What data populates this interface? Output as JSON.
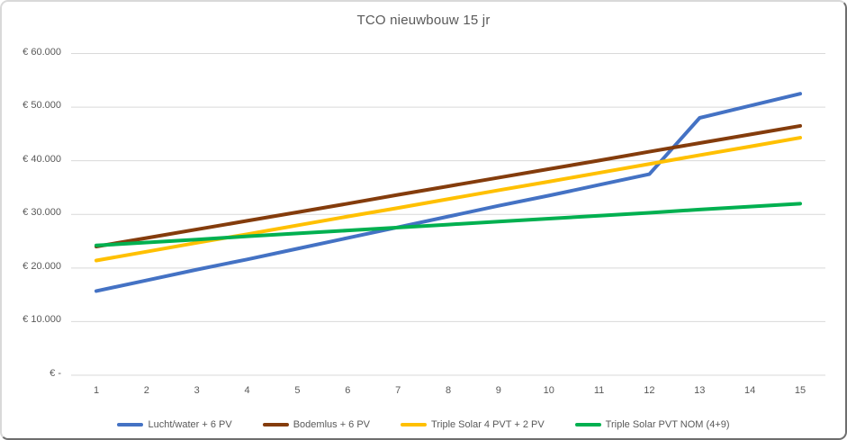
{
  "frame": {
    "background": "#FFFFFF",
    "border_light_color": "#D9D9D9",
    "border_dark_color": "#6E6E6E"
  },
  "chart_data": {
    "type": "line",
    "title": "TCO nieuwbouw 15 jr",
    "xlabel": "",
    "ylabel": "",
    "x": [
      1,
      2,
      3,
      4,
      5,
      6,
      7,
      8,
      9,
      10,
      11,
      12,
      13,
      14,
      15
    ],
    "x_tick_labels": [
      "1",
      "2",
      "3",
      "4",
      "5",
      "6",
      "7",
      "8",
      "9",
      "10",
      "11",
      "12",
      "13",
      "14",
      "15"
    ],
    "y_axis": {
      "min": 0,
      "max": 60000,
      "step": 10000,
      "tick_values": [
        0,
        10000,
        20000,
        30000,
        40000,
        50000,
        60000
      ],
      "tick_labels": [
        "€ -",
        "€ 10.000",
        "€ 20.000",
        "€ 30.000",
        "€ 40.000",
        "€ 50.000",
        "€ 60.000"
      ]
    },
    "grid": "horizontal",
    "gridline_color": "#D9D9D9",
    "text_color": "#595959",
    "legend_position": "bottom",
    "series": [
      {
        "name": "Lucht/water + 6 PV",
        "color": "#4472C4",
        "values": [
          15700,
          17700,
          19700,
          21600,
          23600,
          25600,
          27600,
          29600,
          31600,
          33500,
          35500,
          37500,
          48000,
          50250,
          52500
        ]
      },
      {
        "name": "Bodemlus + 6 PV",
        "color": "#843C0C",
        "values": [
          24000,
          25600,
          27200,
          28800,
          30400,
          32000,
          33650,
          35250,
          36850,
          38450,
          40050,
          41700,
          43300,
          44900,
          46500
        ]
      },
      {
        "name": "Triple Solar 4 PVT + 2 PV",
        "color": "#FFC000",
        "values": [
          21400,
          23050,
          24700,
          26300,
          27950,
          29600,
          31200,
          32850,
          34500,
          36100,
          37750,
          39400,
          41050,
          42650,
          44300
        ]
      },
      {
        "name": "Triple Solar PVT NOM (4+9)",
        "color": "#00B050",
        "values": [
          24200,
          24750,
          25300,
          25900,
          26450,
          27000,
          27550,
          28100,
          28650,
          29200,
          29750,
          30300,
          30900,
          31450,
          32000
        ]
      }
    ]
  }
}
